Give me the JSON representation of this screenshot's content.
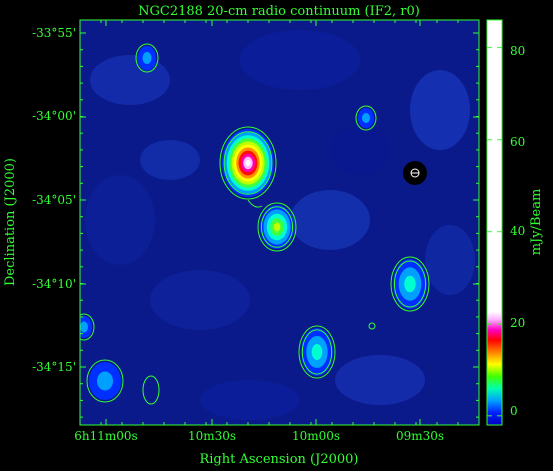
{
  "chart_data": {
    "type": "heatmap",
    "title": "NGC2188  20-cm radio continuum (IF2, r0)",
    "xlabel": "Right Ascension (J2000)",
    "ylabel": "Declination (J2000)",
    "colorbar_label": "mJy/Beam",
    "x_ticks": [
      "6h11m00s",
      "10m30s",
      "10m00s",
      "09m30s"
    ],
    "y_ticks": [
      "-33°55'",
      "-34°00'",
      "-34°05'",
      "-34°10'",
      "-34°15'"
    ],
    "colorbar_ticks": [
      "0",
      "20",
      "40",
      "60",
      "80"
    ],
    "colorbar_range": [
      -2,
      86
    ],
    "colors": {
      "axis": "#33ff33",
      "contour": "#33ff33",
      "background": "#000000"
    },
    "sources": [
      {
        "name": "bright-core",
        "peak": 86
      },
      {
        "name": "secondary-blob",
        "peak": 40
      },
      {
        "name": "east-source",
        "peak": 24
      },
      {
        "name": "south-source",
        "peak": 22
      },
      {
        "name": "southwest-source",
        "peak": 14
      },
      {
        "name": "west-edge-source",
        "peak": 9
      },
      {
        "name": "north-blob",
        "peak": 6
      },
      {
        "name": "north-east-blob",
        "peak": 4
      }
    ]
  }
}
